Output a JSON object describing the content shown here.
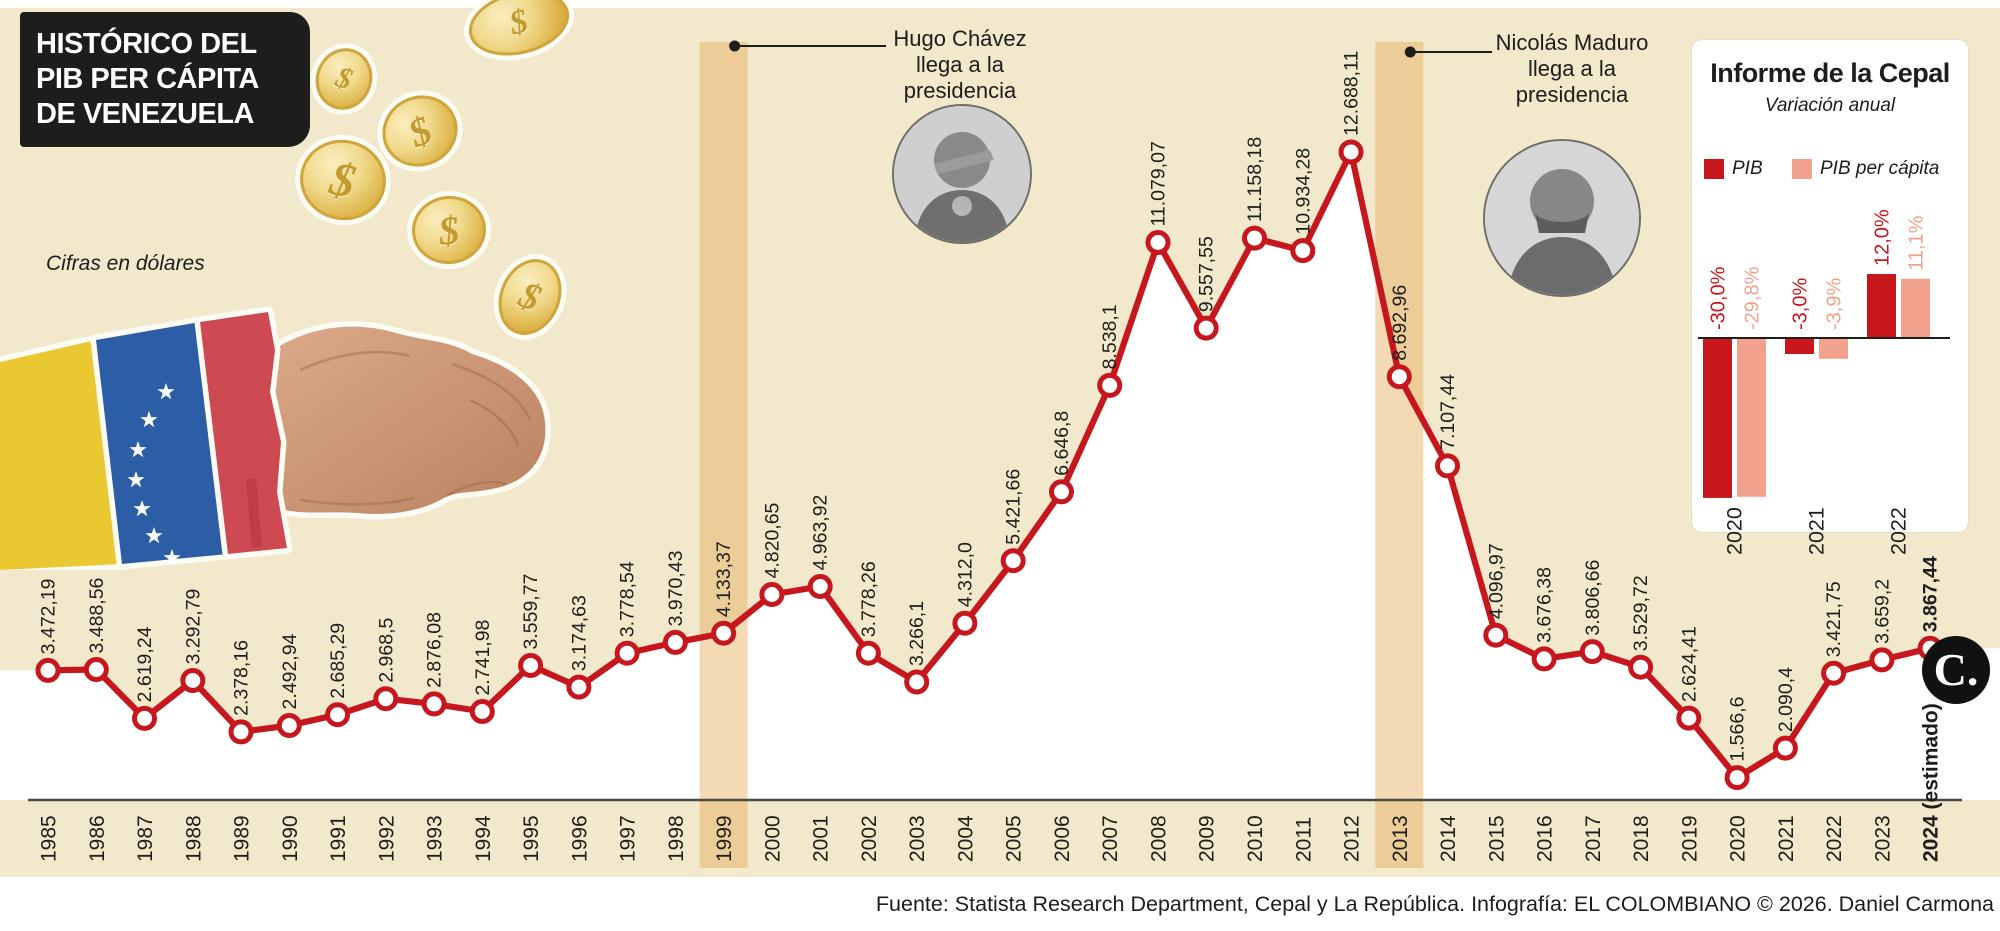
{
  "header": {
    "title": "HISTÓRICO DEL\nPIB PER CÁPITA\nDE VENEZUELA",
    "units_note": "Cifras en dólares"
  },
  "annotations": {
    "chavez": {
      "year": "1999",
      "text": "Hugo Chávez\nllega a la\npresidencia"
    },
    "maduro": {
      "year": "2013",
      "text": "Nicolás Maduro\nllega a la\npresidencia"
    }
  },
  "chart_data": [
    {
      "type": "line",
      "title": "Histórico del PIB per cápita de Venezuela",
      "ylabel": "Cifras en dólares",
      "x_labels": [
        "1985",
        "1986",
        "1987",
        "1988",
        "1989",
        "1990",
        "1991",
        "1992",
        "1993",
        "1994",
        "1995",
        "1996",
        "1997",
        "1998",
        "1999",
        "2000",
        "2001",
        "2002",
        "2003",
        "2004",
        "2005",
        "2006",
        "2007",
        "2008",
        "2009",
        "2010",
        "2011",
        "2012",
        "2013",
        "2014",
        "2015",
        "2016",
        "2017",
        "2018",
        "2019",
        "2020",
        "2021",
        "2022",
        "2023",
        "2024 (estimado)"
      ],
      "values": [
        3472.19,
        3488.56,
        2619.24,
        3292.79,
        2378.16,
        2492.94,
        2685.29,
        2968.5,
        2876.08,
        2741.98,
        3559.77,
        3174.63,
        3778.54,
        3970.43,
        4133.37,
        4820.65,
        4963.92,
        3778.26,
        3266.1,
        4312.0,
        5421.66,
        6646.8,
        8538.1,
        11079.07,
        9557.55,
        11158.18,
        10934.28,
        12688.11,
        8692.96,
        7107.44,
        4096.97,
        3676.38,
        3806.66,
        3529.72,
        2624.41,
        1566.6,
        2090.4,
        3421.75,
        3659.2,
        3867.44
      ],
      "point_labels": [
        "3.472,19",
        "3.488,56",
        "2.619,24",
        "3.292,79",
        "2.378,16",
        "2.492,94",
        "2.685,29",
        "2.968,5",
        "2.876,08",
        "2.741,98",
        "3.559,77",
        "3.174,63",
        "3.778,54",
        "3.970,43",
        "4.133,37",
        "4.820,65",
        "4.963,92",
        "3.778,26",
        "3.266,1",
        "4.312,0",
        "5.421,66",
        "6.646,8",
        "8.538,1",
        "11.079,07",
        "9.557,55",
        "11.158,18",
        "10.934,28",
        "12.688,11",
        "8.692,96",
        "7.107,44",
        "4.096,97",
        "3.676,38",
        "3.806,66",
        "3.529,72",
        "2.624,41",
        "1.566,6",
        "2.090,4",
        "3.421,75",
        "3.659,2",
        "3.867,44"
      ],
      "highlight_years": [
        "1999",
        "2013"
      ],
      "line_color": "#c6171f",
      "grid": false,
      "legend_position": "none"
    },
    {
      "type": "bar",
      "title": "Informe de la Cepal",
      "subtitle": "Variación anual",
      "categories": [
        "2020",
        "2021",
        "2022"
      ],
      "series": [
        {
          "name": "PIB",
          "color": "#c8161d",
          "values": [
            -30.0,
            -3.0,
            12.0
          ],
          "labels": [
            "-30,0%",
            "-3,0%",
            "12,0%"
          ]
        },
        {
          "name": "PIB per cápita",
          "color": "#f2a28c",
          "values": [
            -29.8,
            -3.9,
            11.1
          ],
          "labels": [
            "-29,8%",
            "-3,9%",
            "11,1%"
          ]
        }
      ],
      "ylim": [
        -32,
        14
      ],
      "grid": false,
      "legend_position": "top"
    }
  ],
  "inset": {
    "title": "Informe de la Cepal",
    "subtitle": "Variación anual",
    "legend": [
      {
        "label": "PIB"
      },
      {
        "label": "PIB per cápita"
      }
    ]
  },
  "decor": {
    "dollar_sign": "$"
  },
  "footer": {
    "source": "Fuente: Statista Research Department, Cepal y La República. Infografía: EL COLOMBIANO © 2026. Daniel Carmona",
    "logo": "C."
  },
  "colors": {
    "background_cream": "#f2e8cb",
    "highlight_band": "#e5ae5a",
    "line_red": "#c6171f",
    "bar_pib": "#c8161d",
    "bar_pib_per_capita": "#f2a28c",
    "black": "#1d1d1b"
  }
}
